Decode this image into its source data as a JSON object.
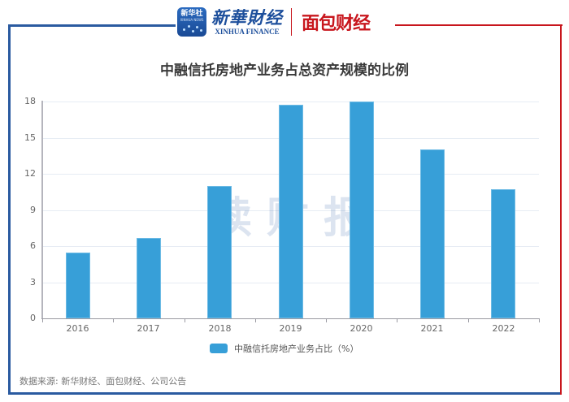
{
  "header": {
    "logo_app_line1": "新华社",
    "logo_app_line2": "XINHUA NEWS",
    "logo_cn": "新華財经",
    "logo_en": "XINHUA FINANCE",
    "partner_logo": "面包财经"
  },
  "colors": {
    "bar": "#379fd8",
    "frame_blue": "#2a5aa0",
    "frame_red": "#c8161d"
  },
  "watermark": "读财报",
  "source": "数据来源: 新华财经、面包财经、公司公告",
  "chart_data": {
    "type": "bar",
    "title": "中融信托房地产业务占总资产规模的比例",
    "xlabel": "",
    "ylabel": "",
    "categories": [
      "2016",
      "2017",
      "2018",
      "2019",
      "2020",
      "2021",
      "2022"
    ],
    "series": [
      {
        "name": "中融信托房地产业务占比（%）",
        "values": [
          5.45,
          6.65,
          11.0,
          17.7,
          18.0,
          14.05,
          10.7
        ]
      }
    ],
    "ylim": [
      0,
      18
    ],
    "yticks": [
      "0",
      "3",
      "6",
      "9",
      "12",
      "15",
      "18"
    ],
    "grid": true,
    "legend_position": "bottom"
  }
}
